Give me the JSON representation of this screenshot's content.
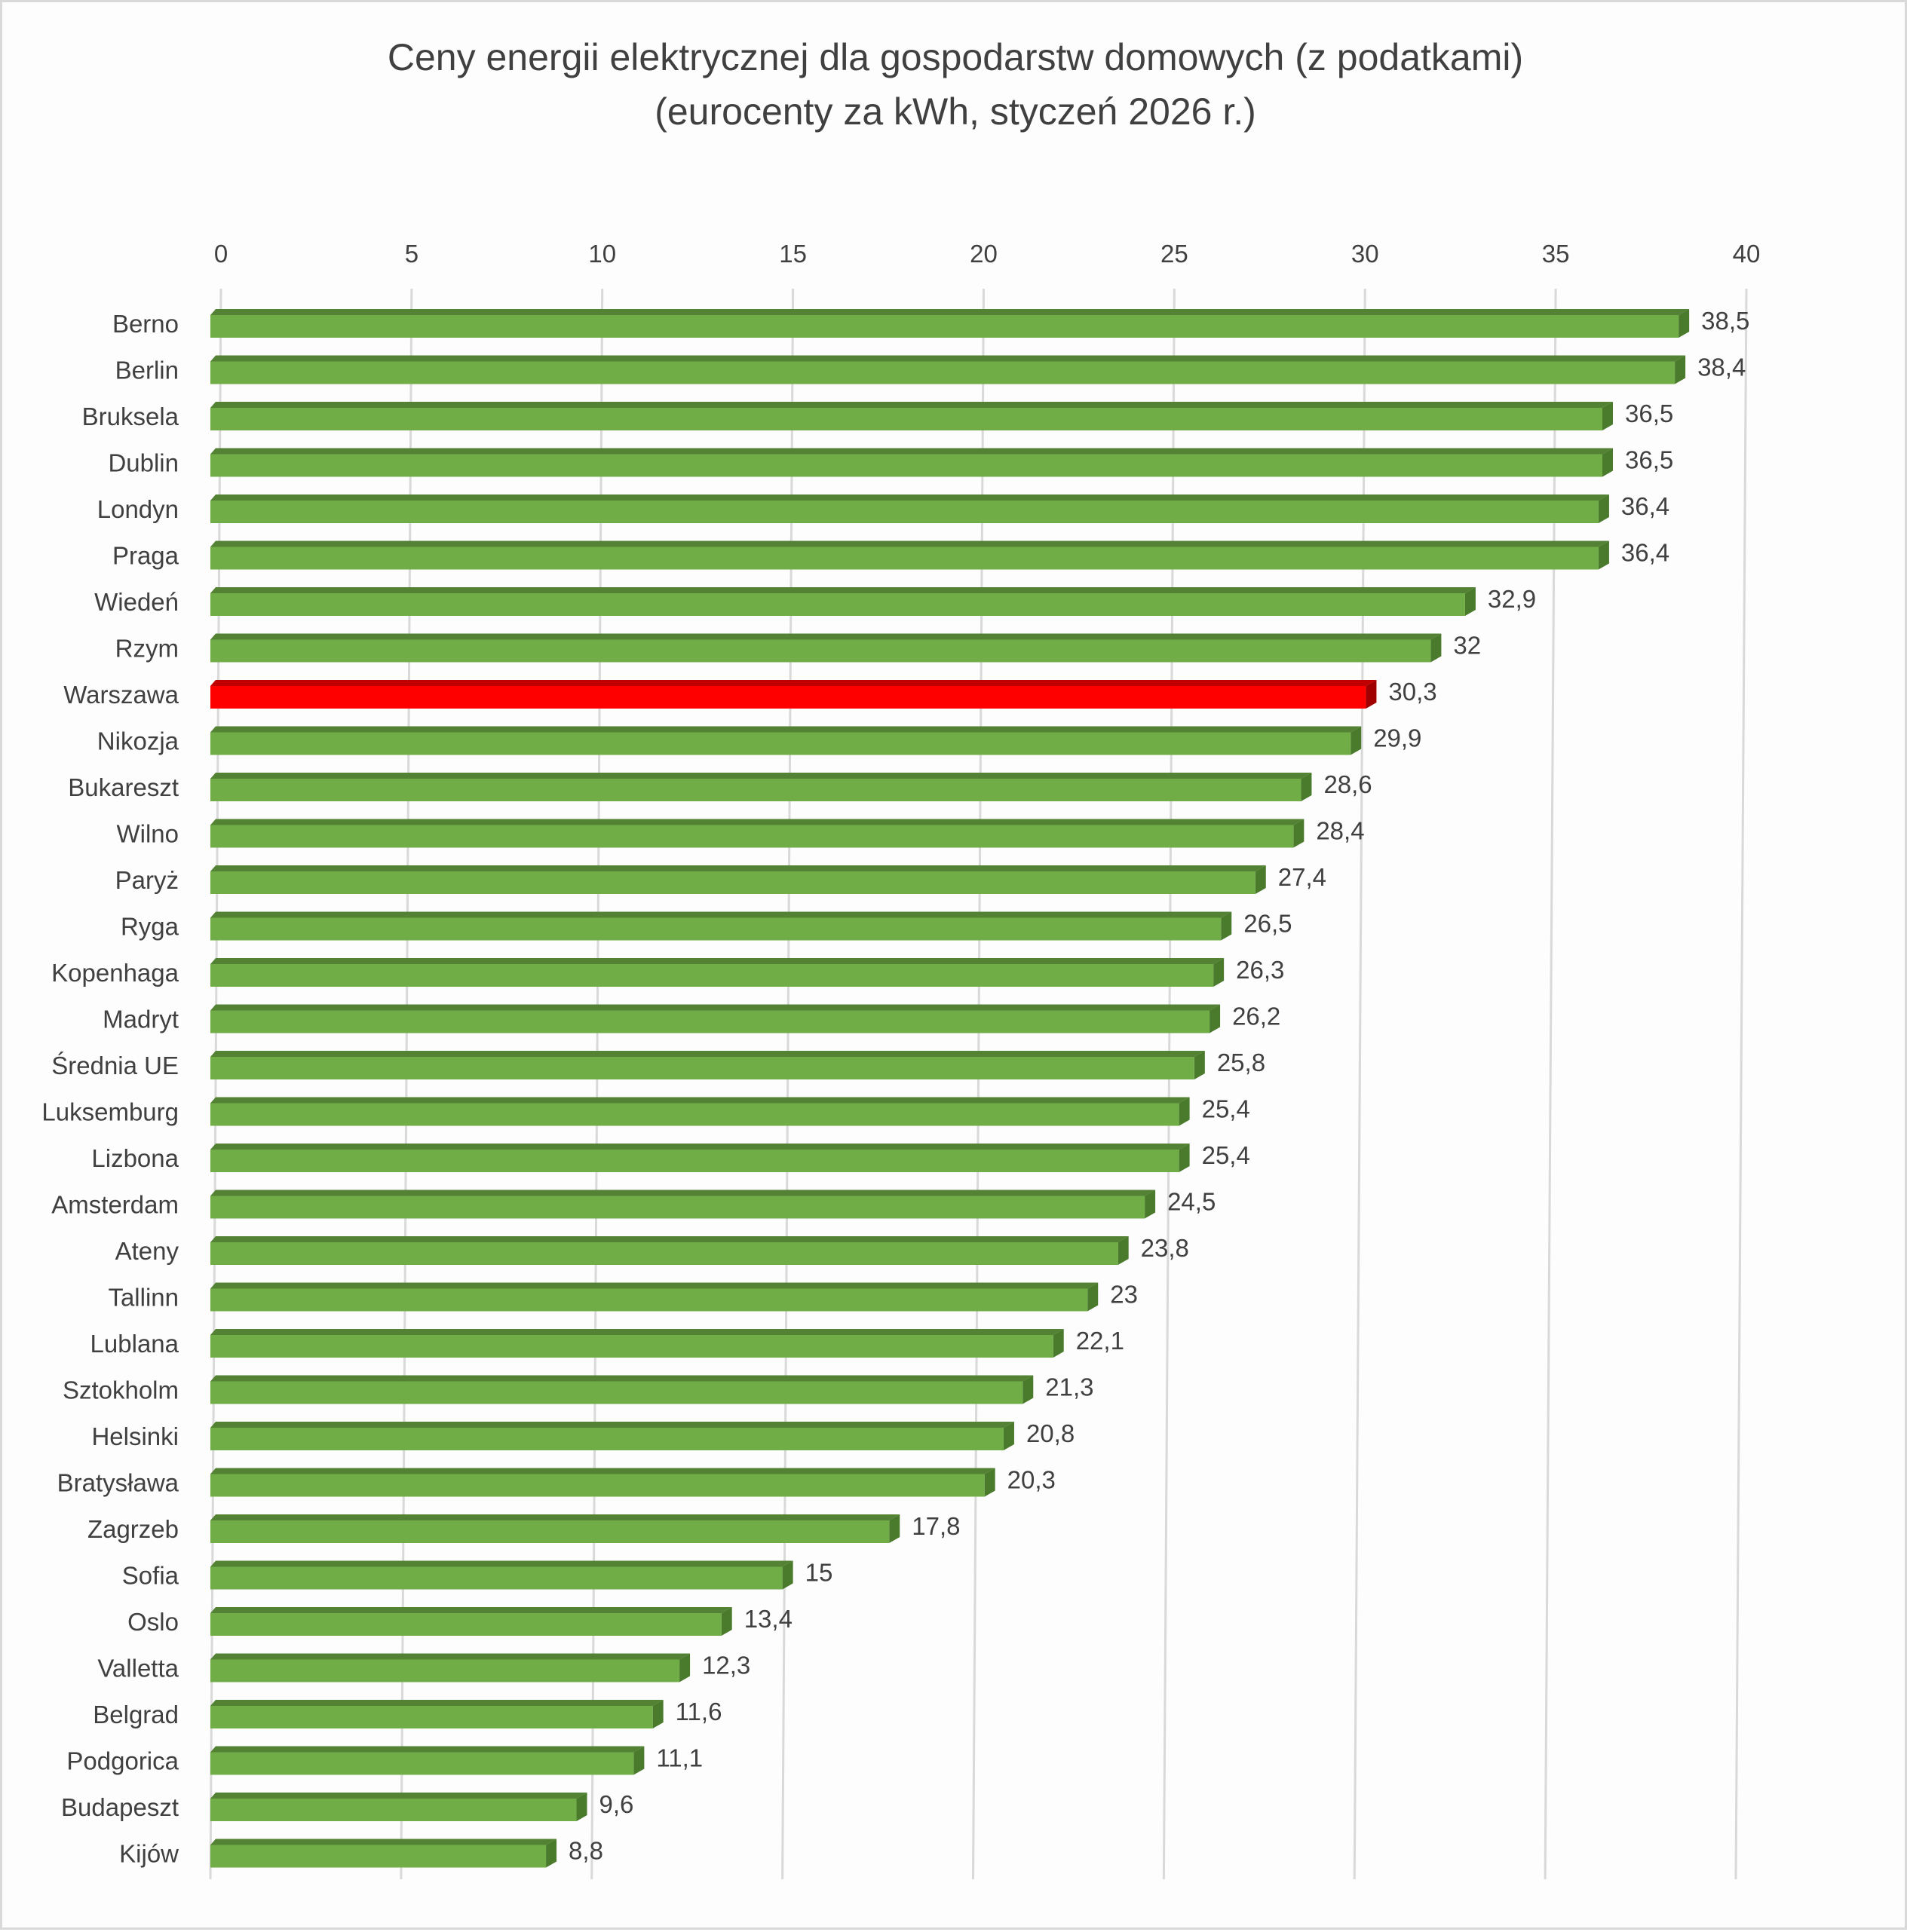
{
  "chart_data": {
    "type": "bar",
    "orientation": "horizontal",
    "style": "3d",
    "title": "Ceny energii elektrycznej dla gospodarstw domowych (z podatkami)",
    "subtitle": "(eurocenty za kWh, styczeń 2026 r.)",
    "xlim": [
      0,
      40
    ],
    "x_ticks": [
      "0",
      "5",
      "10",
      "15",
      "20",
      "25",
      "30",
      "35",
      "40"
    ],
    "x_axis_position": "top",
    "grid": true,
    "categories": [
      "Berno",
      "Berlin",
      "Bruksela",
      "Dublin",
      "Londyn",
      "Praga",
      "Wiedeń",
      "Rzym",
      "Warszawa",
      "Nikozja",
      "Bukareszt",
      "Wilno",
      "Paryż",
      "Ryga",
      "Kopenhaga",
      "Madryt",
      "Średnia UE",
      "Luksemburg",
      "Lizbona",
      "Amsterdam",
      "Ateny",
      "Tallinn",
      "Lublana",
      "Sztokholm",
      "Helsinki",
      "Bratysława",
      "Zagrzeb",
      "Sofia",
      "Oslo",
      "Valletta",
      "Belgrad",
      "Podgorica",
      "Budapeszt",
      "Kijów"
    ],
    "values": [
      38.5,
      38.4,
      36.5,
      36.5,
      36.4,
      36.4,
      32.9,
      32,
      30.3,
      29.9,
      28.6,
      28.4,
      27.4,
      26.5,
      26.3,
      26.2,
      25.8,
      25.4,
      25.4,
      24.5,
      23.8,
      23,
      22.1,
      21.3,
      20.8,
      20.3,
      17.8,
      15,
      13.4,
      12.3,
      11.6,
      11.1,
      9.6,
      8.8
    ],
    "data_labels": [
      "38,5",
      "38,4",
      "36,5",
      "36,5",
      "36,4",
      "36,4",
      "32,9",
      "32",
      "30,3",
      "29,9",
      "28,6",
      "28,4",
      "27,4",
      "26,5",
      "26,3",
      "26,2",
      "25,8",
      "25,4",
      "25,4",
      "24,5",
      "23,8",
      "23",
      "22,1",
      "21,3",
      "20,8",
      "20,3",
      "17,8",
      "15",
      "13,4",
      "12,3",
      "11,6",
      "11,1",
      "9,6",
      "8,8"
    ],
    "highlight": "Warszawa",
    "colors": {
      "bar": "#70ad47",
      "bar_top": "#548235",
      "bar_side": "#4a7a2c",
      "highlight": "#ff0000",
      "highlight_top": "#c00000",
      "grid": "#d9d9d9",
      "text": "#404040"
    }
  }
}
